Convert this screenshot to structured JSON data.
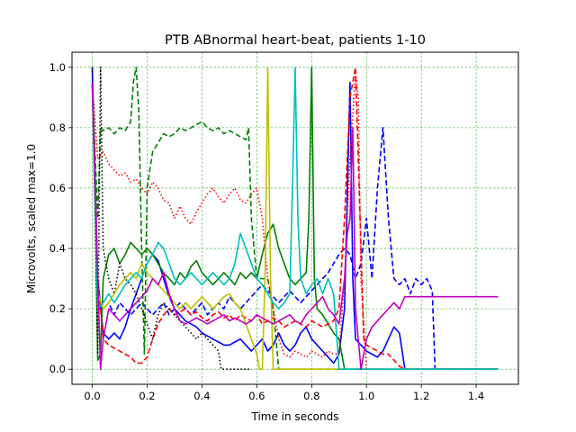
{
  "chart_data": {
    "type": "line",
    "title": "PTB ABnormal heart-beat, patients 1-10",
    "xlabel": "Time in seconds",
    "ylabel": "Microvolts, scaled max=1.0",
    "xlim": [
      -0.074,
      1.554
    ],
    "ylim": [
      -0.05,
      1.05
    ],
    "xticks": [
      "0.0",
      "0.2",
      "0.4",
      "0.6",
      "0.8",
      "1.0",
      "1.2",
      "1.4"
    ],
    "yticks": [
      "0.0",
      "0.2",
      "0.4",
      "0.6",
      "0.8",
      "1.0"
    ],
    "grid": true,
    "grid_color": "#2ca02c",
    "series": [
      {
        "color": "#0000ff",
        "dash": "solid",
        "x": [
          0.0,
          0.02,
          0.04,
          0.06,
          0.08,
          0.1,
          0.12,
          0.14,
          0.16,
          0.18,
          0.2,
          0.22,
          0.24,
          0.26,
          0.28,
          0.3,
          0.32,
          0.34,
          0.36,
          0.38,
          0.4,
          0.42,
          0.44,
          0.46,
          0.48,
          0.5,
          0.52,
          0.54,
          0.56,
          0.58,
          0.6,
          0.62,
          0.64,
          0.66,
          0.68,
          0.7,
          0.72,
          0.74,
          0.76,
          0.78,
          0.8,
          0.82,
          0.84,
          0.86,
          0.88,
          0.9,
          0.92,
          0.94,
          0.95,
          0.96,
          0.98,
          1.0,
          1.02,
          1.04,
          1.06,
          1.08,
          1.1,
          1.12,
          1.14,
          1.16,
          1.18,
          1.2,
          1.22,
          1.24,
          1.26,
          1.28,
          1.3,
          1.32,
          1.34,
          1.36,
          1.38,
          1.4,
          1.42,
          1.44,
          1.46,
          1.48
        ],
        "y": [
          1.0,
          0.3,
          0.12,
          0.1,
          0.12,
          0.1,
          0.14,
          0.2,
          0.25,
          0.3,
          0.35,
          0.38,
          0.36,
          0.3,
          0.24,
          0.2,
          0.18,
          0.16,
          0.15,
          0.14,
          0.12,
          0.11,
          0.1,
          0.09,
          0.08,
          0.08,
          0.09,
          0.1,
          0.08,
          0.06,
          0.08,
          0.1,
          0.06,
          0.08,
          0.12,
          0.08,
          0.06,
          0.08,
          0.12,
          0.14,
          0.1,
          0.08,
          0.06,
          0.04,
          0.02,
          0.05,
          0.2,
          0.95,
          0.3,
          0.1,
          0.08,
          0.06,
          0.05,
          0.04,
          0.06,
          0.1,
          0.14,
          0.12,
          0.0,
          0.0,
          0.0,
          0.0,
          0.0,
          0.0,
          0.0,
          0.0,
          0.0,
          0.0,
          0.0,
          0.0,
          0.0,
          0.0,
          0.0,
          0.0,
          0.0,
          0.0
        ]
      },
      {
        "color": "#0000ff",
        "dash": "dashed",
        "x": [
          0.0,
          0.02,
          0.04,
          0.06,
          0.08,
          0.1,
          0.12,
          0.14,
          0.16,
          0.18,
          0.2,
          0.22,
          0.24,
          0.26,
          0.28,
          0.3,
          0.32,
          0.34,
          0.36,
          0.38,
          0.4,
          0.42,
          0.44,
          0.46,
          0.48,
          0.5,
          0.52,
          0.54,
          0.56,
          0.58,
          0.6,
          0.62,
          0.64,
          0.66,
          0.68,
          0.7,
          0.72,
          0.74,
          0.76,
          0.78,
          0.8,
          0.82,
          0.84,
          0.86,
          0.88,
          0.9,
          0.92,
          0.94,
          0.96,
          0.98,
          1.0,
          1.02,
          1.04,
          1.06,
          1.08,
          1.1,
          1.12,
          1.14,
          1.16,
          1.18,
          1.2,
          1.22,
          1.24,
          1.25,
          1.26,
          1.3,
          1.48
        ],
        "y": [
          0.95,
          0.2,
          0.2,
          0.22,
          0.18,
          0.22,
          0.2,
          0.18,
          0.2,
          0.22,
          0.2,
          0.18,
          0.2,
          0.22,
          0.18,
          0.2,
          0.22,
          0.2,
          0.18,
          0.2,
          0.22,
          0.18,
          0.2,
          0.22,
          0.2,
          0.24,
          0.22,
          0.2,
          0.22,
          0.24,
          0.26,
          0.28,
          0.26,
          0.24,
          0.22,
          0.24,
          0.26,
          0.24,
          0.22,
          0.24,
          0.26,
          0.28,
          0.3,
          0.32,
          0.35,
          0.38,
          0.4,
          0.38,
          0.3,
          0.35,
          0.5,
          0.3,
          0.6,
          0.8,
          0.5,
          0.3,
          0.28,
          0.3,
          0.25,
          0.3,
          0.28,
          0.3,
          0.26,
          0.0,
          0.0,
          0.0,
          0.0
        ]
      },
      {
        "color": "#008000",
        "dash": "solid",
        "x": [
          0.0,
          0.01,
          0.02,
          0.03,
          0.04,
          0.06,
          0.08,
          0.1,
          0.12,
          0.14,
          0.16,
          0.18,
          0.2,
          0.22,
          0.24,
          0.26,
          0.28,
          0.3,
          0.32,
          0.34,
          0.36,
          0.38,
          0.4,
          0.42,
          0.44,
          0.46,
          0.48,
          0.5,
          0.52,
          0.54,
          0.56,
          0.58,
          0.6,
          0.62,
          0.64,
          0.66,
          0.68,
          0.7,
          0.72,
          0.74,
          0.76,
          0.78,
          0.79,
          0.8,
          0.81,
          0.82,
          0.84,
          0.86,
          0.88,
          0.9,
          0.92,
          0.94,
          0.96,
          1.0,
          1.48
        ],
        "y": [
          0.95,
          0.6,
          0.03,
          0.05,
          0.3,
          0.38,
          0.4,
          0.35,
          0.38,
          0.42,
          0.4,
          0.38,
          0.4,
          0.38,
          0.35,
          0.32,
          0.3,
          0.28,
          0.32,
          0.3,
          0.34,
          0.36,
          0.32,
          0.3,
          0.28,
          0.3,
          0.32,
          0.3,
          0.28,
          0.32,
          0.3,
          0.32,
          0.3,
          0.38,
          0.45,
          0.48,
          0.4,
          0.35,
          0.3,
          0.28,
          0.3,
          0.32,
          0.5,
          1.0,
          0.3,
          0.2,
          0.18,
          0.15,
          0.12,
          0.1,
          0.0,
          0.0,
          0.0,
          0.0,
          0.0
        ]
      },
      {
        "color": "#008000",
        "dash": "dashed",
        "x": [
          0.0,
          0.02,
          0.03,
          0.04,
          0.06,
          0.08,
          0.1,
          0.12,
          0.14,
          0.15,
          0.16,
          0.17,
          0.18,
          0.19,
          0.2,
          0.22,
          0.24,
          0.26,
          0.28,
          0.3,
          0.32,
          0.34,
          0.36,
          0.38,
          0.4,
          0.42,
          0.44,
          0.46,
          0.48,
          0.5,
          0.52,
          0.54,
          0.56,
          0.57,
          0.58,
          0.6,
          0.62,
          0.64,
          0.66,
          0.68,
          0.7,
          0.72,
          0.74,
          0.76,
          0.78,
          0.8,
          0.82,
          0.84,
          0.86,
          0.88,
          0.9,
          0.92,
          0.94,
          0.96,
          0.98,
          1.0,
          1.02,
          1.04,
          1.06,
          1.08,
          1.1,
          1.12,
          1.14,
          1.16,
          1.18,
          1.2,
          1.48
        ],
        "y": [
          0.95,
          0.5,
          0.8,
          0.79,
          0.8,
          0.78,
          0.8,
          0.79,
          0.82,
          0.95,
          1.0,
          0.85,
          0.4,
          0.05,
          0.6,
          0.72,
          0.75,
          0.78,
          0.77,
          0.78,
          0.8,
          0.79,
          0.8,
          0.81,
          0.82,
          0.8,
          0.79,
          0.8,
          0.78,
          0.79,
          0.78,
          0.77,
          0.76,
          0.8,
          0.5,
          0.3,
          0.3,
          0.3,
          0.2,
          0.0,
          0.0,
          0.0,
          0.0,
          0.0,
          0.0,
          0.0,
          0.0,
          0.0,
          0.0,
          0.0,
          0.0,
          0.0,
          0.0,
          0.0,
          0.0,
          0.0,
          0.0,
          0.0,
          0.0,
          0.0,
          0.0,
          0.0,
          0.0,
          0.0,
          0.0,
          0.0,
          0.0
        ]
      },
      {
        "color": "#ff0000",
        "dash": "dotted",
        "x": [
          0.0,
          0.02,
          0.04,
          0.06,
          0.08,
          0.1,
          0.12,
          0.14,
          0.16,
          0.18,
          0.2,
          0.22,
          0.24,
          0.26,
          0.28,
          0.3,
          0.32,
          0.34,
          0.36,
          0.38,
          0.4,
          0.42,
          0.44,
          0.46,
          0.48,
          0.5,
          0.52,
          0.54,
          0.56,
          0.58,
          0.6,
          0.62,
          0.64,
          0.66,
          0.68,
          0.7,
          0.72,
          0.74,
          0.76,
          0.78,
          0.8,
          0.82,
          0.84,
          0.86,
          0.88,
          0.9,
          0.92,
          0.94,
          0.96,
          0.97,
          0.98,
          1.0,
          1.48
        ],
        "y": [
          0.95,
          0.7,
          0.72,
          0.68,
          0.66,
          0.64,
          0.65,
          0.62,
          0.63,
          0.6,
          0.58,
          0.62,
          0.6,
          0.56,
          0.55,
          0.5,
          0.54,
          0.5,
          0.48,
          0.52,
          0.55,
          0.58,
          0.6,
          0.57,
          0.55,
          0.58,
          0.6,
          0.56,
          0.55,
          0.58,
          0.6,
          0.5,
          0.3,
          0.2,
          0.1,
          0.05,
          0.04,
          0.06,
          0.05,
          0.04,
          0.06,
          0.05,
          0.04,
          0.06,
          0.05,
          0.05,
          0.3,
          0.7,
          0.98,
          0.9,
          0.3,
          0.0,
          0.0
        ]
      },
      {
        "color": "#ff0000",
        "dash": "dashed",
        "x": [
          0.0,
          0.02,
          0.04,
          0.06,
          0.08,
          0.1,
          0.12,
          0.14,
          0.16,
          0.18,
          0.2,
          0.22,
          0.24,
          0.26,
          0.28,
          0.3,
          0.32,
          0.34,
          0.36,
          0.38,
          0.4,
          0.42,
          0.44,
          0.46,
          0.48,
          0.5,
          0.52,
          0.54,
          0.56,
          0.58,
          0.6,
          0.62,
          0.64,
          0.66,
          0.68,
          0.7,
          0.72,
          0.74,
          0.76,
          0.78,
          0.8,
          0.82,
          0.84,
          0.86,
          0.88,
          0.9,
          0.92,
          0.94,
          0.96,
          0.98,
          0.99,
          1.0,
          1.02,
          1.04,
          1.06,
          1.08,
          1.1,
          1.12,
          1.14,
          1.16,
          1.18,
          1.2,
          1.48
        ],
        "y": [
          0.95,
          0.3,
          0.1,
          0.08,
          0.07,
          0.06,
          0.05,
          0.04,
          0.02,
          0.02,
          0.04,
          0.1,
          0.15,
          0.18,
          0.2,
          0.18,
          0.19,
          0.2,
          0.18,
          0.19,
          0.17,
          0.16,
          0.18,
          0.19,
          0.17,
          0.18,
          0.16,
          0.18,
          0.17,
          0.16,
          0.18,
          0.15,
          0.16,
          0.17,
          0.16,
          0.14,
          0.15,
          0.16,
          0.15,
          0.14,
          0.16,
          0.15,
          0.14,
          0.15,
          0.16,
          0.2,
          0.5,
          0.9,
          1.0,
          0.4,
          0.1,
          0.08,
          0.07,
          0.06,
          0.05,
          0.05,
          0.03,
          0.01,
          0.0,
          0.0,
          0.0,
          0.0,
          0.0
        ]
      },
      {
        "color": "#000000",
        "dash": "dotted",
        "x": [
          0.0,
          0.01,
          0.02,
          0.03,
          0.04,
          0.06,
          0.08,
          0.1,
          0.12,
          0.14,
          0.16,
          0.18,
          0.2,
          0.22,
          0.24,
          0.26,
          0.28,
          0.3,
          0.32,
          0.34,
          0.36,
          0.38,
          0.4,
          0.42,
          0.44,
          0.46,
          0.47,
          0.48,
          0.5,
          0.52,
          0.54,
          0.56,
          0.58
        ],
        "y": [
          1.0,
          0.5,
          0.05,
          1.0,
          0.4,
          0.3,
          0.25,
          0.35,
          0.3,
          0.28,
          0.25,
          0.2,
          0.15,
          0.1,
          0.18,
          0.22,
          0.2,
          0.18,
          0.16,
          0.14,
          0.12,
          0.1,
          0.12,
          0.1,
          0.08,
          0.06,
          0.0,
          0.0,
          0.0,
          0.0,
          0.0,
          0.0,
          0.0
        ]
      },
      {
        "color": "#bfbf00",
        "dash": "solid",
        "x": [
          0.0,
          0.02,
          0.04,
          0.06,
          0.08,
          0.1,
          0.12,
          0.14,
          0.16,
          0.18,
          0.2,
          0.22,
          0.24,
          0.26,
          0.28,
          0.3,
          0.32,
          0.34,
          0.36,
          0.38,
          0.4,
          0.42,
          0.44,
          0.46,
          0.48,
          0.5,
          0.52,
          0.54,
          0.56,
          0.58,
          0.6,
          0.61,
          0.62,
          0.63,
          0.64,
          0.65,
          0.66,
          0.68,
          0.7,
          0.72,
          0.74,
          0.76,
          0.78,
          0.8,
          1.48
        ],
        "y": [
          0.95,
          0.25,
          0.2,
          0.22,
          0.25,
          0.28,
          0.3,
          0.32,
          0.3,
          0.35,
          0.32,
          0.3,
          0.28,
          0.26,
          0.24,
          0.22,
          0.2,
          0.22,
          0.2,
          0.22,
          0.24,
          0.22,
          0.2,
          0.22,
          0.24,
          0.25,
          0.22,
          0.2,
          0.15,
          0.1,
          0.05,
          0.0,
          0.0,
          0.3,
          1.0,
          0.3,
          0.0,
          0.0,
          0.0,
          0.0,
          0.0,
          0.0,
          0.0,
          0.0,
          0.0
        ]
      },
      {
        "color": "#00bfbf",
        "dash": "solid",
        "x": [
          0.0,
          0.02,
          0.04,
          0.06,
          0.08,
          0.1,
          0.12,
          0.14,
          0.16,
          0.18,
          0.2,
          0.22,
          0.24,
          0.26,
          0.28,
          0.3,
          0.32,
          0.34,
          0.36,
          0.38,
          0.4,
          0.42,
          0.44,
          0.46,
          0.48,
          0.5,
          0.52,
          0.54,
          0.56,
          0.58,
          0.6,
          0.62,
          0.64,
          0.66,
          0.68,
          0.7,
          0.72,
          0.73,
          0.74,
          0.75,
          0.76,
          0.78,
          0.8,
          0.82,
          0.84,
          0.86,
          0.88,
          0.9,
          1.48
        ],
        "y": [
          0.95,
          0.2,
          0.22,
          0.25,
          0.22,
          0.25,
          0.28,
          0.3,
          0.32,
          0.3,
          0.35,
          0.38,
          0.42,
          0.4,
          0.35,
          0.3,
          0.28,
          0.3,
          0.32,
          0.3,
          0.28,
          0.3,
          0.32,
          0.3,
          0.28,
          0.3,
          0.35,
          0.45,
          0.4,
          0.35,
          0.3,
          0.28,
          0.25,
          0.22,
          0.2,
          0.22,
          0.25,
          0.6,
          1.0,
          0.5,
          0.3,
          0.25,
          0.28,
          0.3,
          0.25,
          0.3,
          0.25,
          0.0,
          0.0
        ]
      },
      {
        "color": "#bf00bf",
        "dash": "solid",
        "x": [
          0.0,
          0.02,
          0.03,
          0.04,
          0.06,
          0.08,
          0.1,
          0.12,
          0.14,
          0.16,
          0.18,
          0.2,
          0.22,
          0.24,
          0.26,
          0.28,
          0.3,
          0.32,
          0.34,
          0.36,
          0.38,
          0.4,
          0.42,
          0.44,
          0.46,
          0.48,
          0.5,
          0.52,
          0.54,
          0.56,
          0.58,
          0.6,
          0.62,
          0.64,
          0.66,
          0.68,
          0.7,
          0.72,
          0.74,
          0.76,
          0.78,
          0.8,
          0.82,
          0.84,
          0.86,
          0.88,
          0.9,
          0.92,
          0.93,
          0.94,
          0.95,
          0.96,
          0.98,
          1.0,
          1.02,
          1.04,
          1.06,
          1.08,
          1.1,
          1.12,
          1.14,
          1.48
        ],
        "y": [
          0.95,
          0.3,
          0.0,
          0.1,
          0.2,
          0.18,
          0.16,
          0.18,
          0.2,
          0.22,
          0.24,
          0.26,
          0.3,
          0.28,
          0.32,
          0.25,
          0.2,
          0.16,
          0.15,
          0.16,
          0.17,
          0.16,
          0.15,
          0.16,
          0.17,
          0.18,
          0.16,
          0.17,
          0.16,
          0.15,
          0.16,
          0.18,
          0.17,
          0.16,
          0.15,
          0.16,
          0.17,
          0.18,
          0.16,
          0.15,
          0.18,
          0.2,
          0.22,
          0.24,
          0.2,
          0.18,
          0.15,
          0.3,
          0.45,
          0.5,
          0.8,
          0.2,
          0.0,
          0.1,
          0.14,
          0.16,
          0.18,
          0.2,
          0.22,
          0.2,
          0.24,
          0.24
        ]
      }
    ]
  }
}
